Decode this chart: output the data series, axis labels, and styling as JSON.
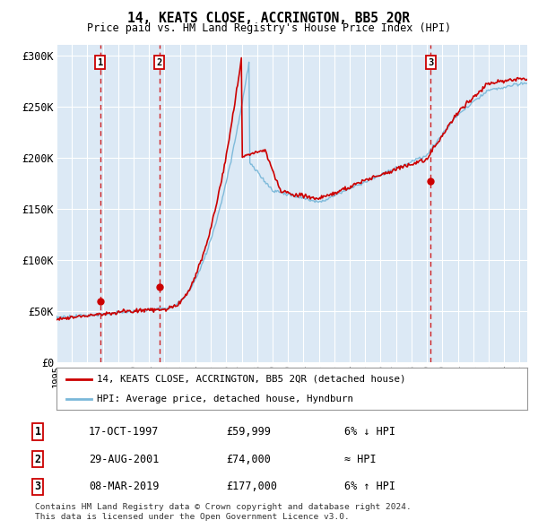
{
  "title": "14, KEATS CLOSE, ACCRINGTON, BB5 2QR",
  "subtitle": "Price paid vs. HM Land Registry's House Price Index (HPI)",
  "ylim": [
    0,
    310000
  ],
  "yticks": [
    0,
    50000,
    100000,
    150000,
    200000,
    250000,
    300000
  ],
  "ytick_labels": [
    "£0",
    "£50K",
    "£100K",
    "£150K",
    "£200K",
    "£250K",
    "£300K"
  ],
  "background_color": "#ffffff",
  "plot_bg_color": "#dce9f5",
  "grid_color": "#ffffff",
  "sale_year_floats": [
    1997.833,
    2001.667,
    2019.25
  ],
  "sale_prices": [
    59999,
    74000,
    177000
  ],
  "sale_labels": [
    "1",
    "2",
    "3"
  ],
  "legend_line1": "14, KEATS CLOSE, ACCRINGTON, BB5 2QR (detached house)",
  "legend_line2": "HPI: Average price, detached house, Hyndburn",
  "table_rows": [
    [
      "1",
      "17-OCT-1997",
      "£59,999",
      "6% ↓ HPI"
    ],
    [
      "2",
      "29-AUG-2001",
      "£74,000",
      "≈ HPI"
    ],
    [
      "3",
      "08-MAR-2019",
      "£177,000",
      "6% ↑ HPI"
    ]
  ],
  "footnote": "Contains HM Land Registry data © Crown copyright and database right 2024.\nThis data is licensed under the Open Government Licence v3.0.",
  "hpi_color": "#7ab8d9",
  "price_color": "#cc0000",
  "dashed_color": "#cc0000",
  "xlim": [
    1995,
    2025.5
  ]
}
